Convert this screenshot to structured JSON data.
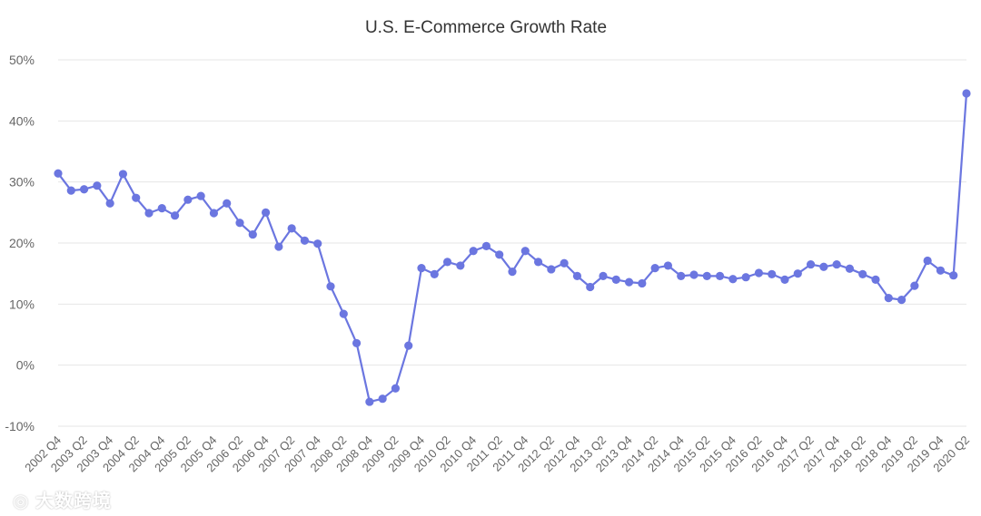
{
  "chart_data": {
    "type": "line",
    "title": "U.S. E-Commerce Growth Rate",
    "xlabel": "",
    "ylabel": "",
    "ylim": [
      -10,
      50
    ],
    "yticks": [
      -10,
      0,
      10,
      20,
      30,
      40,
      50
    ],
    "ytick_labels": [
      "-10%",
      "0%",
      "10%",
      "20%",
      "30%",
      "40%",
      "50%"
    ],
    "grid": true,
    "color": "#6b76e0",
    "categories": [
      "2002 Q4",
      "2003 Q1",
      "2003 Q2",
      "2003 Q3",
      "2003 Q4",
      "2004 Q1",
      "2004 Q2",
      "2004 Q3",
      "2004 Q4",
      "2005 Q1",
      "2005 Q2",
      "2005 Q3",
      "2005 Q4",
      "2006 Q1",
      "2006 Q2",
      "2006 Q3",
      "2006 Q4",
      "2007 Q1",
      "2007 Q2",
      "2007 Q3",
      "2007 Q4",
      "2008 Q1",
      "2008 Q2",
      "2008 Q3",
      "2008 Q4",
      "2009 Q1",
      "2009 Q2",
      "2009 Q3",
      "2009 Q4",
      "2010 Q1",
      "2010 Q2",
      "2010 Q3",
      "2010 Q4",
      "2011 Q1",
      "2011 Q2",
      "2011 Q3",
      "2011 Q4",
      "2012 Q1",
      "2012 Q2",
      "2012 Q3",
      "2012 Q4",
      "2013 Q1",
      "2013 Q2",
      "2013 Q3",
      "2013 Q4",
      "2014 Q1",
      "2014 Q2",
      "2014 Q3",
      "2014 Q4",
      "2015 Q1",
      "2015 Q2",
      "2015 Q3",
      "2015 Q4",
      "2016 Q1",
      "2016 Q2",
      "2016 Q3",
      "2016 Q4",
      "2017 Q1",
      "2017 Q2",
      "2017 Q3",
      "2017 Q4",
      "2018 Q1",
      "2018 Q2",
      "2018 Q3",
      "2018 Q4",
      "2019 Q1",
      "2019 Q2",
      "2019 Q3",
      "2019 Q4",
      "2020 Q1",
      "2020 Q2"
    ],
    "xtick_labels": [
      "2002 Q4",
      "2003 Q2",
      "2003 Q4",
      "2004 Q2",
      "2004 Q4",
      "2005 Q2",
      "2005 Q4",
      "2006 Q2",
      "2006 Q4",
      "2007 Q2",
      "2007 Q4",
      "2008 Q2",
      "2008 Q4",
      "2009 Q2",
      "2009 Q4",
      "2010 Q2",
      "2010 Q4",
      "2011 Q2",
      "2011 Q4",
      "2012 Q2",
      "2012 Q4",
      "2013 Q2",
      "2013 Q4",
      "2014 Q2",
      "2014 Q4",
      "2015 Q2",
      "2015 Q4",
      "2016 Q2",
      "2016 Q4",
      "2017 Q2",
      "2017 Q4",
      "2018 Q2",
      "2018 Q4",
      "2019 Q2",
      "2019 Q4",
      "2020 Q2"
    ],
    "series": [
      {
        "name": "U.S. E-Commerce Growth Rate",
        "values": [
          31.4,
          28.6,
          28.8,
          29.4,
          26.5,
          31.3,
          27.4,
          24.9,
          25.7,
          24.5,
          27.1,
          27.7,
          24.9,
          26.5,
          23.3,
          21.4,
          25.0,
          19.4,
          22.4,
          20.4,
          19.9,
          12.9,
          8.4,
          3.6,
          -6.0,
          -5.5,
          -3.8,
          3.2,
          15.9,
          14.9,
          16.9,
          16.3,
          18.7,
          19.5,
          18.1,
          15.3,
          18.7,
          16.9,
          15.7,
          16.7,
          14.6,
          12.8,
          14.6,
          14.0,
          13.6,
          13.4,
          15.9,
          16.3,
          14.6,
          14.8,
          14.6,
          14.6,
          14.1,
          14.4,
          15.1,
          14.9,
          14.0,
          15.0,
          16.5,
          16.1,
          16.5,
          15.8,
          14.9,
          14.0,
          11.0,
          10.7,
          13.0,
          17.1,
          15.5,
          14.7,
          44.5
        ]
      }
    ]
  },
  "watermark": "大数跨境"
}
